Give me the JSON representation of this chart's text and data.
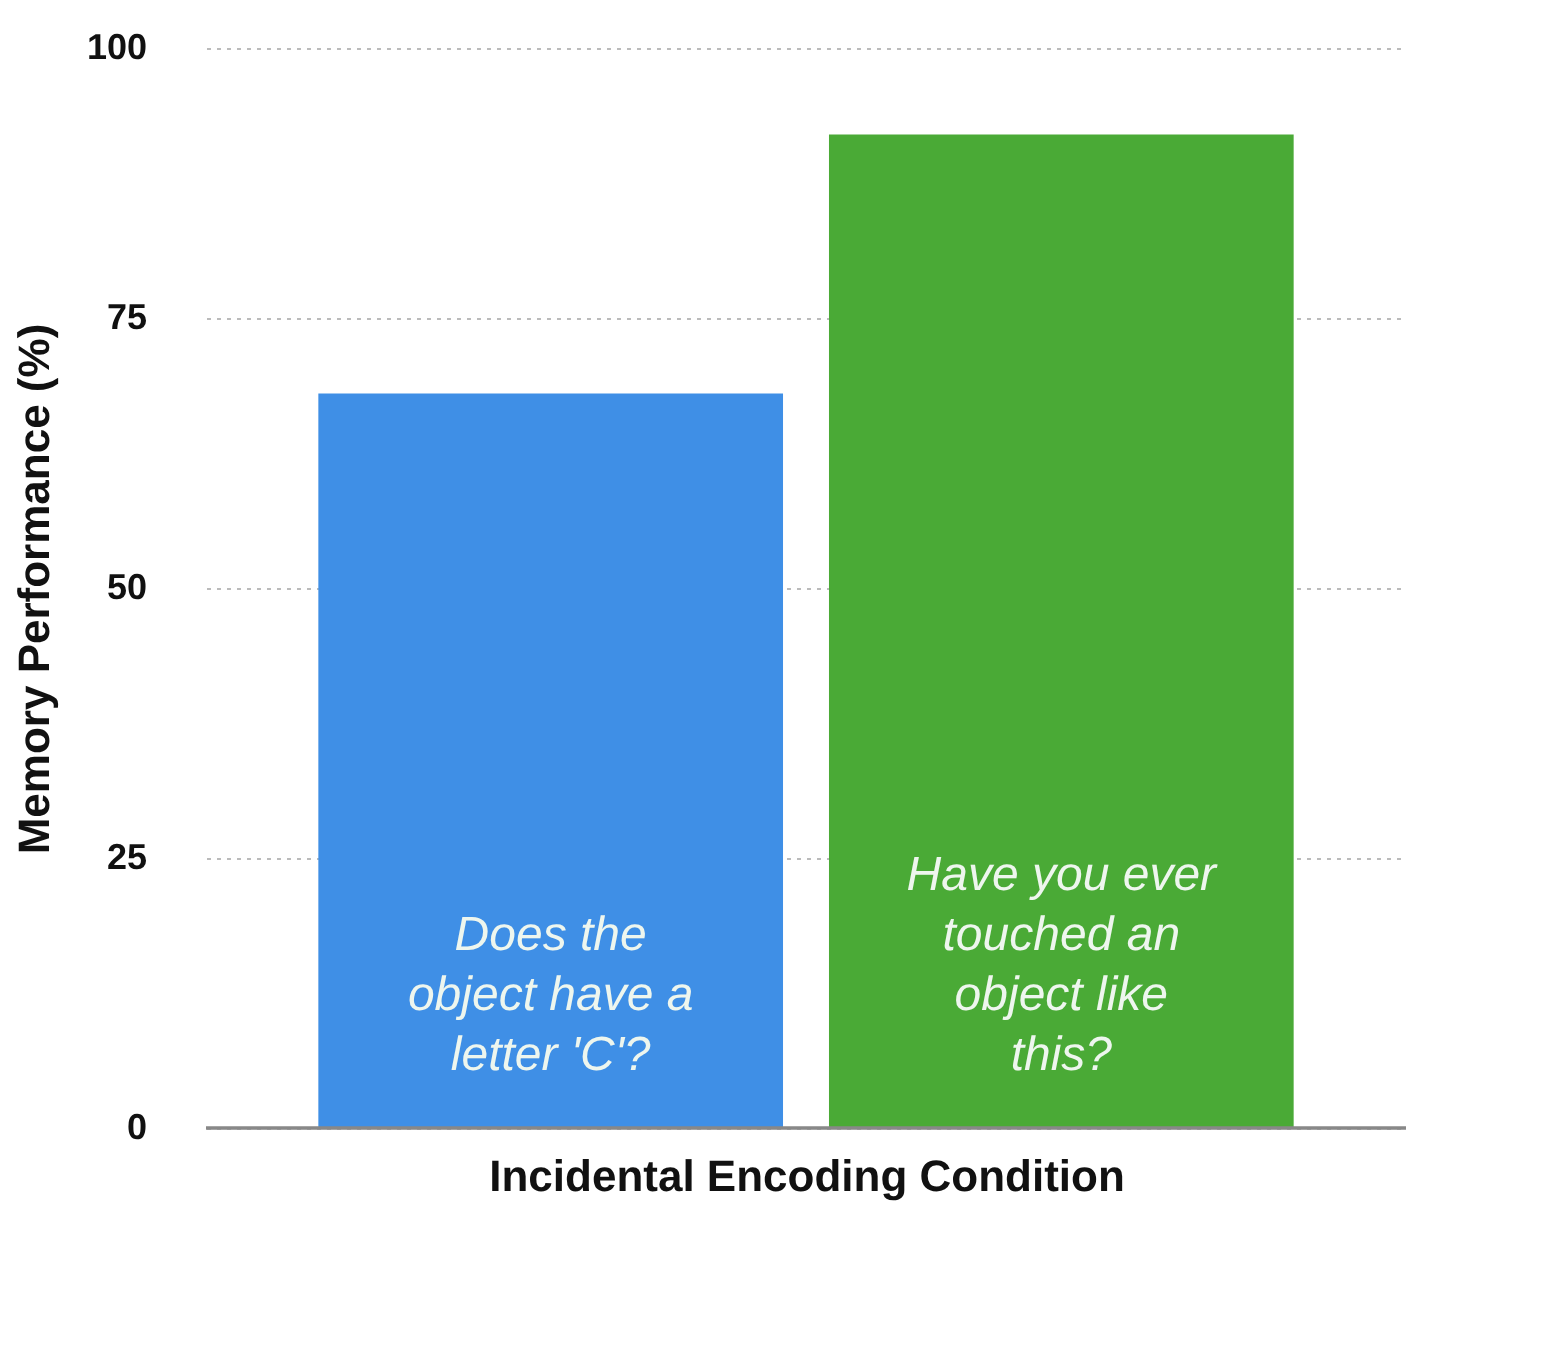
{
  "chart_data": {
    "type": "bar",
    "xlabel": "Incidental Encoding Condition",
    "ylabel": "Memory Performance (%)",
    "categories": [
      "Does the object have a letter 'C'?",
      "Have you ever touched an object like this?"
    ],
    "values": [
      68,
      92
    ],
    "colors": [
      "#3f8fe6",
      "#4aaa36"
    ],
    "ylim": [
      0,
      100
    ],
    "yticks": [
      0,
      25,
      50,
      75,
      100
    ],
    "grid": "y"
  }
}
